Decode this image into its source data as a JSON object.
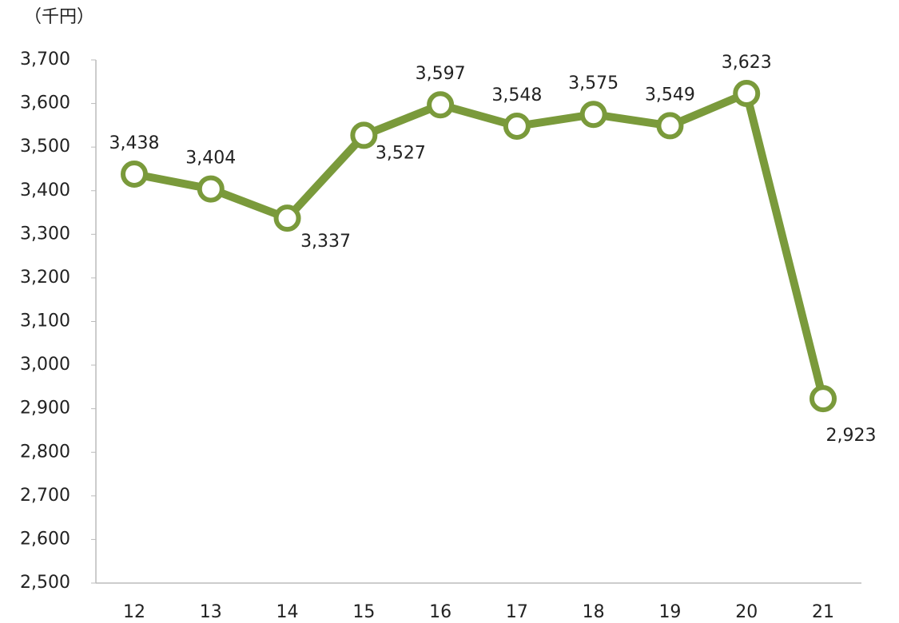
{
  "chart_data": {
    "type": "line",
    "y_axis_label": "（千円）",
    "categories": [
      "12",
      "13",
      "14",
      "15",
      "16",
      "17",
      "18",
      "19",
      "20",
      "21"
    ],
    "series": [
      {
        "name": "value",
        "color": "#7a9a3b",
        "values": [
          3438,
          3404,
          3337,
          3527,
          3597,
          3548,
          3575,
          3549,
          3623,
          2923
        ],
        "value_labels": [
          "3,438",
          "3,404",
          "3,337",
          "3,527",
          "3,597",
          "3,548",
          "3,575",
          "3,549",
          "3,623",
          "2,923"
        ]
      }
    ],
    "ylim": [
      2500,
      3700
    ],
    "yticks": [
      {
        "value": 2500,
        "label": "2,500"
      },
      {
        "value": 2600,
        "label": "2,600"
      },
      {
        "value": 2700,
        "label": "2,700"
      },
      {
        "value": 2800,
        "label": "2,800"
      },
      {
        "value": 2900,
        "label": "2,900"
      },
      {
        "value": 3000,
        "label": "3,000"
      },
      {
        "value": 3100,
        "label": "3,100"
      },
      {
        "value": 3200,
        "label": "3,200"
      },
      {
        "value": 3300,
        "label": "3,300"
      },
      {
        "value": 3400,
        "label": "3,400"
      },
      {
        "value": 3500,
        "label": "3,500"
      },
      {
        "value": 3600,
        "label": "3,600"
      },
      {
        "value": 3700,
        "label": "3,700"
      }
    ]
  }
}
